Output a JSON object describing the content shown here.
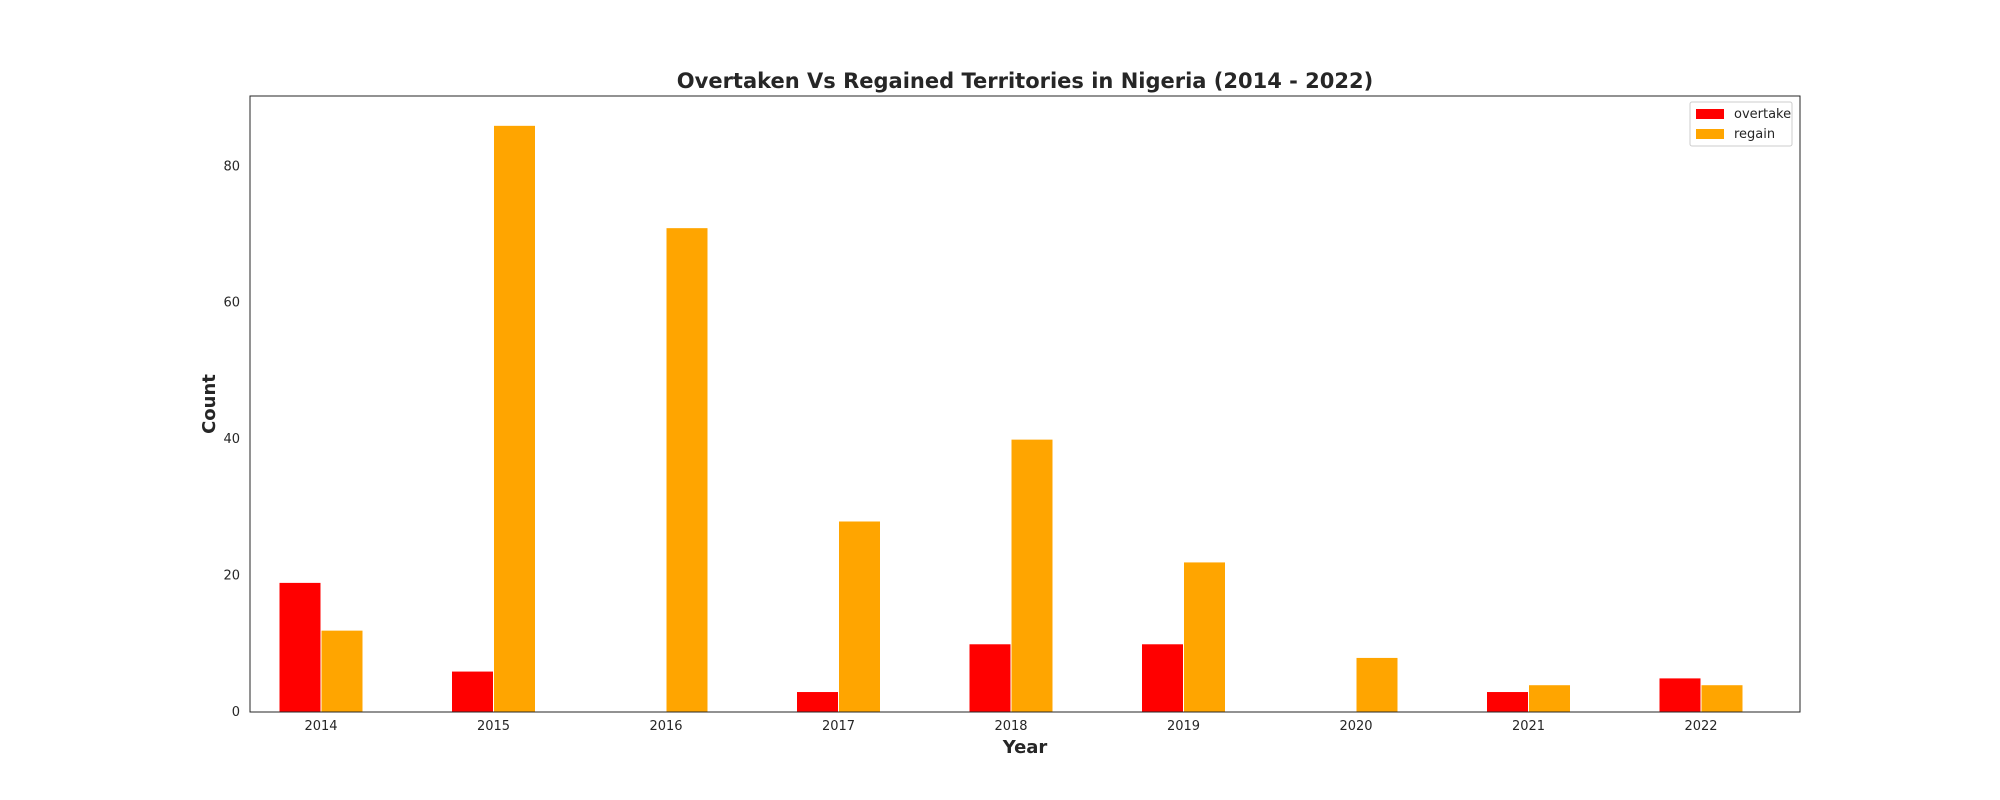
{
  "chart_data": {
    "type": "bar",
    "title": "Overtaken Vs Regained Territories in Nigeria (2014 - 2022)",
    "xlabel": "Year",
    "ylabel": "Count",
    "categories": [
      "2014",
      "2015",
      "2016",
      "2017",
      "2018",
      "2019",
      "2020",
      "2021",
      "2022"
    ],
    "series": [
      {
        "name": "overtake",
        "color": "#ff0000",
        "values": [
          19,
          6,
          0,
          3,
          10,
          10,
          0,
          3,
          5
        ]
      },
      {
        "name": "regain",
        "color": "#ffa500",
        "values": [
          12,
          86,
          71,
          28,
          40,
          22,
          8,
          4,
          4
        ]
      }
    ],
    "ylim": [
      0,
      90.3
    ],
    "yticks": [
      0,
      20,
      40,
      60,
      80
    ],
    "grid": false,
    "legend_position": "top-right"
  }
}
